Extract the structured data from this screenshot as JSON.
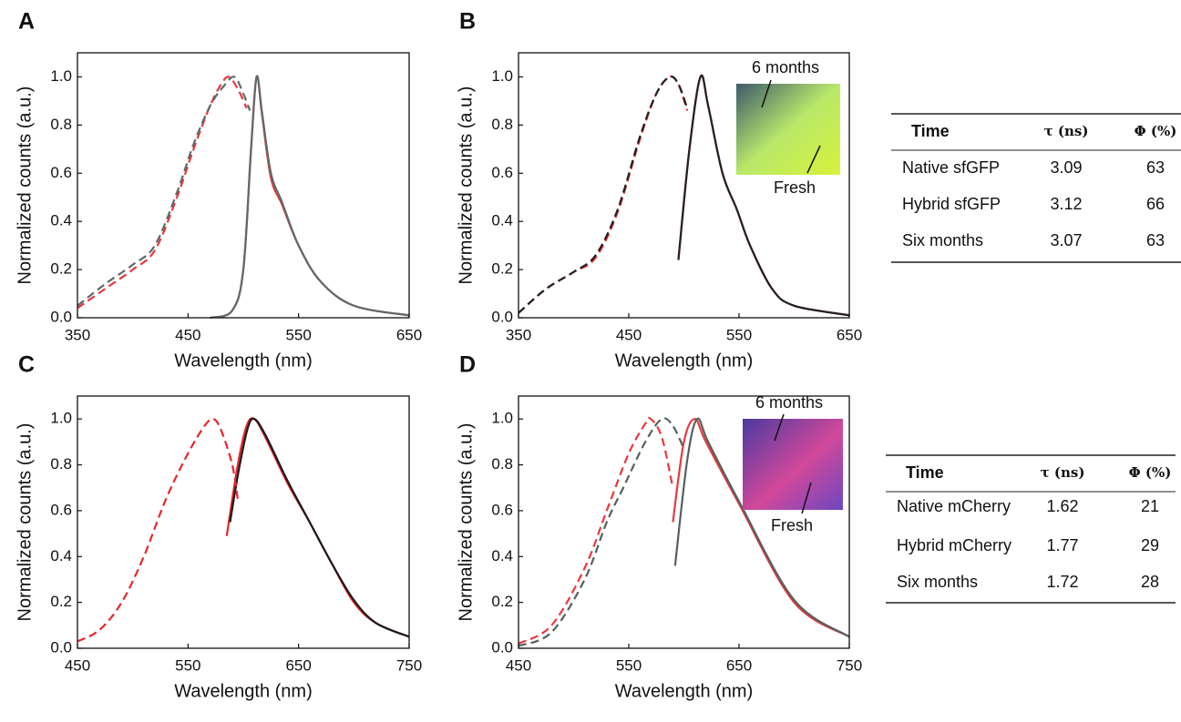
{
  "chart_data": [
    {
      "type": "line",
      "label": "A",
      "xlabel": "Wavelength (nm)",
      "ylabel": "Normalized counts (a.u.)",
      "xlim": [
        350,
        650
      ],
      "xticks": [
        350,
        450,
        550,
        650
      ],
      "ylim": [
        0,
        1.1
      ],
      "yticks": [
        {
          "value": 0,
          "label": "0.0"
        },
        0.2,
        0.4,
        0.6,
        0.8,
        {
          "value": 1,
          "label": "1.0"
        }
      ],
      "series": [
        {
          "color": "#5d6b68",
          "dashed": true,
          "x": [
            350,
            375,
            400,
            420,
            440,
            455,
            470,
            482,
            492,
            500,
            506
          ],
          "values": [
            0.05,
            0.14,
            0.22,
            0.3,
            0.52,
            0.72,
            0.88,
            0.96,
            1.0,
            0.93,
            0.86
          ]
        },
        {
          "color": "#e8383c",
          "dashed": true,
          "x": [
            350,
            375,
            400,
            420,
            440,
            455,
            470,
            480,
            487,
            495,
            503
          ],
          "values": [
            0.04,
            0.12,
            0.2,
            0.28,
            0.5,
            0.7,
            0.88,
            0.97,
            1.0,
            0.95,
            0.87
          ]
        },
        {
          "color": "#5d6b68",
          "dashed": false,
          "x": [
            470,
            490,
            500,
            507,
            512,
            517,
            525,
            535,
            550,
            570,
            600,
            650
          ],
          "values": [
            0,
            0.03,
            0.2,
            0.7,
            1.0,
            0.85,
            0.6,
            0.48,
            0.3,
            0.15,
            0.05,
            0.01
          ]
        },
        {
          "color": "#e8383c",
          "dashed": false,
          "x": [
            470,
            490,
            500,
            507,
            512,
            517,
            525,
            535,
            550,
            570,
            600,
            650
          ],
          "values": [
            0,
            0.03,
            0.2,
            0.7,
            1.0,
            0.84,
            0.58,
            0.47,
            0.3,
            0.15,
            0.05,
            0.01
          ]
        }
      ]
    },
    {
      "type": "line",
      "label": "B",
      "xlabel": "Wavelength (nm)",
      "ylabel": "Normalized counts (a.u.)",
      "xlim": [
        350,
        650
      ],
      "xticks": [
        350,
        450,
        550,
        650
      ],
      "ylim": [
        0,
        1.1
      ],
      "yticks": [
        {
          "value": 0,
          "label": "0.0"
        },
        0.2,
        0.4,
        0.6,
        0.8,
        {
          "value": 1,
          "label": "1.0"
        }
      ],
      "annotations": [
        "6 months",
        "Fresh"
      ],
      "series": [
        {
          "color": "#222222",
          "dashed": true,
          "x": [
            350,
            375,
            400,
            420,
            440,
            460,
            475,
            487,
            495,
            503
          ],
          "values": [
            0.02,
            0.12,
            0.19,
            0.26,
            0.45,
            0.75,
            0.93,
            1.0,
            0.97,
            0.87
          ]
        },
        {
          "color": "#e8262a",
          "dashed": true,
          "x": [
            350,
            375,
            400,
            420,
            440,
            460,
            475,
            487,
            495,
            503
          ],
          "values": [
            0.02,
            0.12,
            0.19,
            0.25,
            0.44,
            0.74,
            0.93,
            1.0,
            0.97,
            0.86
          ]
        },
        {
          "color": "#222222",
          "dashed": false,
          "x": [
            495,
            505,
            515,
            522,
            535,
            548,
            560,
            580,
            600,
            650
          ],
          "values": [
            0.24,
            0.7,
            1.0,
            0.88,
            0.6,
            0.45,
            0.3,
            0.12,
            0.05,
            0.01
          ]
        },
        {
          "color": "#e8262a",
          "dashed": false,
          "x": [
            495,
            505,
            515,
            522,
            535,
            548,
            560,
            580,
            600,
            650
          ],
          "values": [
            0.24,
            0.7,
            1.0,
            0.88,
            0.6,
            0.45,
            0.3,
            0.12,
            0.05,
            0.01
          ]
        }
      ]
    },
    {
      "type": "line",
      "label": "C",
      "xlabel": "Wavelength (nm)",
      "ylabel": "Normalized counts (a.u.)",
      "xlim": [
        450,
        750
      ],
      "xticks": [
        450,
        550,
        650,
        750
      ],
      "ylim": [
        0,
        1.1
      ],
      "yticks": [
        {
          "value": 0,
          "label": "0.0"
        },
        0.2,
        0.4,
        0.6,
        0.8,
        {
          "value": 1,
          "label": "1.0"
        }
      ],
      "series": [
        {
          "color": "#e8262a",
          "dashed": true,
          "x": [
            450,
            470,
            490,
            510,
            530,
            550,
            565,
            573,
            580,
            590,
            595
          ],
          "values": [
            0.03,
            0.08,
            0.2,
            0.4,
            0.65,
            0.85,
            0.97,
            1.0,
            0.95,
            0.8,
            0.65
          ]
        },
        {
          "color": "#1a1a1a",
          "dashed": false,
          "x": [
            588,
            596,
            604,
            610,
            620,
            640,
            660,
            680,
            700,
            720,
            750
          ],
          "values": [
            0.55,
            0.78,
            0.96,
            1.0,
            0.93,
            0.73,
            0.55,
            0.37,
            0.21,
            0.11,
            0.05
          ]
        },
        {
          "color": "#e8262a",
          "dashed": false,
          "x": [
            585,
            595,
            603,
            610,
            620,
            640,
            660,
            680,
            700,
            720,
            750
          ],
          "values": [
            0.49,
            0.8,
            0.97,
            1.0,
            0.92,
            0.72,
            0.55,
            0.37,
            0.2,
            0.11,
            0.05
          ]
        }
      ]
    },
    {
      "type": "line",
      "label": "D",
      "xlabel": "Wavelength (nm)",
      "ylabel": "Normalized counts (a.u.)",
      "xlim": [
        450,
        750
      ],
      "xticks": [
        450,
        550,
        650,
        750
      ],
      "ylim": [
        0,
        1.1
      ],
      "yticks": [
        {
          "value": 0,
          "label": "0.0"
        },
        0.2,
        0.4,
        0.6,
        0.8,
        {
          "value": 1,
          "label": "1.0"
        }
      ],
      "annotations": [
        "6 months",
        "Fresh"
      ],
      "series": [
        {
          "color": "#55605e",
          "dashed": true,
          "x": [
            450,
            480,
            510,
            530,
            545,
            565,
            580,
            590,
            600
          ],
          "values": [
            0.01,
            0.07,
            0.3,
            0.55,
            0.7,
            0.9,
            1.0,
            0.97,
            0.87
          ]
        },
        {
          "color": "#e8383c",
          "dashed": true,
          "x": [
            450,
            480,
            510,
            530,
            550,
            565,
            570,
            580,
            590
          ],
          "values": [
            0.02,
            0.1,
            0.35,
            0.6,
            0.85,
            0.98,
            1.0,
            0.92,
            0.7
          ]
        },
        {
          "color": "#55605e",
          "dashed": false,
          "x": [
            592,
            603,
            612,
            622,
            650,
            700,
            750
          ],
          "values": [
            0.36,
            0.82,
            1.0,
            0.9,
            0.64,
            0.21,
            0.05
          ]
        },
        {
          "color": "#e8383c",
          "dashed": false,
          "x": [
            590,
            600,
            610,
            620,
            650,
            700,
            750
          ],
          "values": [
            0.55,
            0.9,
            1.0,
            0.9,
            0.63,
            0.2,
            0.05
          ]
        }
      ]
    }
  ],
  "tables": [
    {
      "header": [
        "Time",
        "τ (ns)",
        "Φ (%)"
      ],
      "rows": [
        [
          "Native sfGFP",
          3.09,
          63
        ],
        [
          "Hybrid sfGFP",
          3.12,
          66
        ],
        [
          "Six months",
          3.07,
          63
        ]
      ]
    },
    {
      "header": [
        "Time",
        "τ (ns)",
        "Φ (%)"
      ],
      "rows": [
        [
          "Native mCherry",
          1.62,
          21
        ],
        [
          "Hybrid mCherry",
          1.77,
          29
        ],
        [
          "Six months",
          1.72,
          28
        ]
      ]
    }
  ]
}
